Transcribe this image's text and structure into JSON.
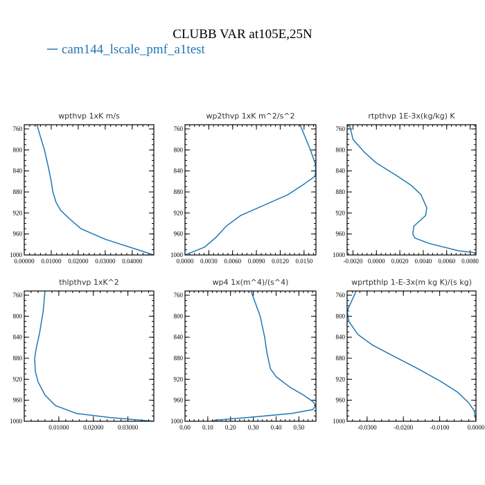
{
  "figure": {
    "title": "CLUBB VAR at105E,25N",
    "legend_label": "cam144_lscale_pmf_a1test",
    "legend_color": "#1f77b4"
  },
  "chart_data": [
    {
      "type": "line",
      "title": "wpthvp  1xK m/s",
      "xlim": [
        0.0,
        0.048
      ],
      "ylim": [
        1000,
        752
      ],
      "x_ticks": [
        0.0,
        0.01,
        0.02,
        0.03,
        0.04
      ],
      "x_tick_labels": [
        "0.00000",
        "0.01000",
        "0.02000",
        "0.03000",
        "0.04000"
      ],
      "y_ticks": [
        760,
        800,
        840,
        880,
        920,
        960,
        1000
      ],
      "y_tick_labels": [
        "760",
        "800",
        "840",
        "880",
        "920",
        "960",
        "1000"
      ],
      "series": [
        {
          "color": "#1f77b4",
          "points": [
            [
              0.0047,
              752
            ],
            [
              0.006,
              775
            ],
            [
              0.0075,
              800
            ],
            [
              0.0088,
              830
            ],
            [
              0.01,
              860
            ],
            [
              0.0106,
              880
            ],
            [
              0.0118,
              900
            ],
            [
              0.0135,
              915
            ],
            [
              0.0165,
              930
            ],
            [
              0.021,
              950
            ],
            [
              0.03,
              970
            ],
            [
              0.042,
              990
            ],
            [
              0.048,
              1000
            ]
          ]
        }
      ]
    },
    {
      "type": "line",
      "title": "wp2thvp  1xK m^2/s^2",
      "xlim": [
        0.0,
        0.0165
      ],
      "ylim": [
        1000,
        752
      ],
      "x_ticks": [
        0.0,
        0.003,
        0.006,
        0.009,
        0.012,
        0.015
      ],
      "x_tick_labels": [
        "0.0000",
        "0.0030",
        "0.0060",
        "0.0090",
        "0.0120",
        "0.0150"
      ],
      "y_ticks": [
        760,
        800,
        840,
        880,
        920,
        960,
        1000
      ],
      "y_tick_labels": [
        "760",
        "800",
        "840",
        "880",
        "920",
        "960",
        "1000"
      ],
      "series": [
        {
          "color": "#1f77b4",
          "points": [
            [
              0.0145,
              752
            ],
            [
              0.0158,
              800
            ],
            [
              0.0165,
              830
            ],
            [
              0.0164,
              850
            ],
            [
              0.015,
              865
            ],
            [
              0.013,
              885
            ],
            [
              0.01,
              905
            ],
            [
              0.007,
              925
            ],
            [
              0.0052,
              945
            ],
            [
              0.004,
              965
            ],
            [
              0.0025,
              985
            ],
            [
              0.0,
              1000
            ]
          ]
        }
      ]
    },
    {
      "type": "line",
      "title": "rtpthvp   1E-3x(kg/kg) K",
      "xlim": [
        -0.0025,
        0.0085
      ],
      "ylim": [
        1000,
        752
      ],
      "x_ticks": [
        -0.002,
        0.0,
        0.002,
        0.004,
        0.006,
        0.008
      ],
      "x_tick_labels": [
        "-0.0020",
        "0.0000",
        "0.0020",
        "0.0040",
        "0.0060",
        "0.0080"
      ],
      "y_ticks": [
        760,
        800,
        840,
        880,
        920,
        960,
        1000
      ],
      "y_tick_labels": [
        "760",
        "800",
        "840",
        "880",
        "920",
        "960",
        "1000"
      ],
      "series": [
        {
          "color": "#1f77b4",
          "points": [
            [
              -0.0023,
              752
            ],
            [
              -0.002,
              780
            ],
            [
              -0.001,
              805
            ],
            [
              0.0,
              825
            ],
            [
              0.0018,
              850
            ],
            [
              0.003,
              868
            ],
            [
              0.0038,
              885
            ],
            [
              0.0043,
              910
            ],
            [
              0.0042,
              925
            ],
            [
              0.0032,
              945
            ],
            [
              0.0031,
              960
            ],
            [
              0.0033,
              968
            ],
            [
              0.0045,
              978
            ],
            [
              0.007,
              992
            ],
            [
              0.0085,
              996
            ]
          ]
        }
      ]
    },
    {
      "type": "line",
      "title": "thlpthvp   1xK^2",
      "xlim": [
        0.0,
        0.0375
      ],
      "ylim": [
        1000,
        752
      ],
      "x_ticks": [
        0.01,
        0.02,
        0.03
      ],
      "x_tick_labels": [
        "0.01000",
        "0.02000",
        "0.03000"
      ],
      "y_ticks": [
        760,
        800,
        840,
        880,
        920,
        960,
        1000
      ],
      "y_tick_labels": [
        "760",
        "800",
        "840",
        "880",
        "920",
        "960",
        "1000"
      ],
      "series": [
        {
          "color": "#1f77b4",
          "points": [
            [
              0.006,
              752
            ],
            [
              0.0055,
              790
            ],
            [
              0.0045,
              830
            ],
            [
              0.0035,
              860
            ],
            [
              0.003,
              880
            ],
            [
              0.0032,
              905
            ],
            [
              0.004,
              925
            ],
            [
              0.006,
              950
            ],
            [
              0.009,
              970
            ],
            [
              0.015,
              985
            ],
            [
              0.025,
              993
            ],
            [
              0.0375,
              1000
            ]
          ]
        }
      ]
    },
    {
      "type": "line",
      "title": "wp4   1x(m^4)/(s^4)",
      "xlim": [
        0.0,
        0.575
      ],
      "ylim": [
        1000,
        752
      ],
      "x_ticks": [
        0.0,
        0.1,
        0.2,
        0.3,
        0.4,
        0.5
      ],
      "x_tick_labels": [
        "0.00",
        "0.10",
        "0.20",
        "0.30",
        "0.40",
        "0.50"
      ],
      "y_ticks": [
        760,
        800,
        840,
        880,
        920,
        960,
        1000
      ],
      "y_tick_labels": [
        "760",
        "800",
        "840",
        "880",
        "920",
        "960",
        "1000"
      ],
      "series": [
        {
          "color": "#1f77b4",
          "points": [
            [
              0.29,
              752
            ],
            [
              0.33,
              800
            ],
            [
              0.35,
              840
            ],
            [
              0.36,
              870
            ],
            [
              0.375,
              900
            ],
            [
              0.4,
              915
            ],
            [
              0.46,
              935
            ],
            [
              0.52,
              950
            ],
            [
              0.56,
              962
            ],
            [
              0.575,
              970
            ],
            [
              0.56,
              978
            ],
            [
              0.47,
              985
            ],
            [
              0.3,
              992
            ],
            [
              0.13,
              998
            ],
            [
              0.12,
              1000
            ]
          ]
        }
      ]
    },
    {
      "type": "line",
      "title": "wprtpthlp   1-E-3x(m kg K)/(s kg)",
      "xlim": [
        -0.0355,
        0.0
      ],
      "ylim": [
        1000,
        752
      ],
      "x_ticks": [
        -0.03,
        -0.02,
        -0.01,
        0.0
      ],
      "x_tick_labels": [
        "-0.0300",
        "-0.0200",
        "-0.0100",
        "0.0000"
      ],
      "y_ticks": [
        760,
        800,
        840,
        880,
        920,
        960,
        1000
      ],
      "y_tick_labels": [
        "760",
        "800",
        "840",
        "880",
        "920",
        "960",
        "1000"
      ],
      "series": [
        {
          "color": "#1f77b4",
          "points": [
            [
              -0.033,
              752
            ],
            [
              -0.0355,
              790
            ],
            [
              -0.035,
              810
            ],
            [
              -0.0325,
              835
            ],
            [
              -0.0285,
              855
            ],
            [
              -0.023,
              875
            ],
            [
              -0.016,
              900
            ],
            [
              -0.0095,
              925
            ],
            [
              -0.005,
              945
            ],
            [
              -0.002,
              965
            ],
            [
              -0.0005,
              980
            ],
            [
              0.0,
              1000
            ]
          ]
        }
      ]
    }
  ]
}
